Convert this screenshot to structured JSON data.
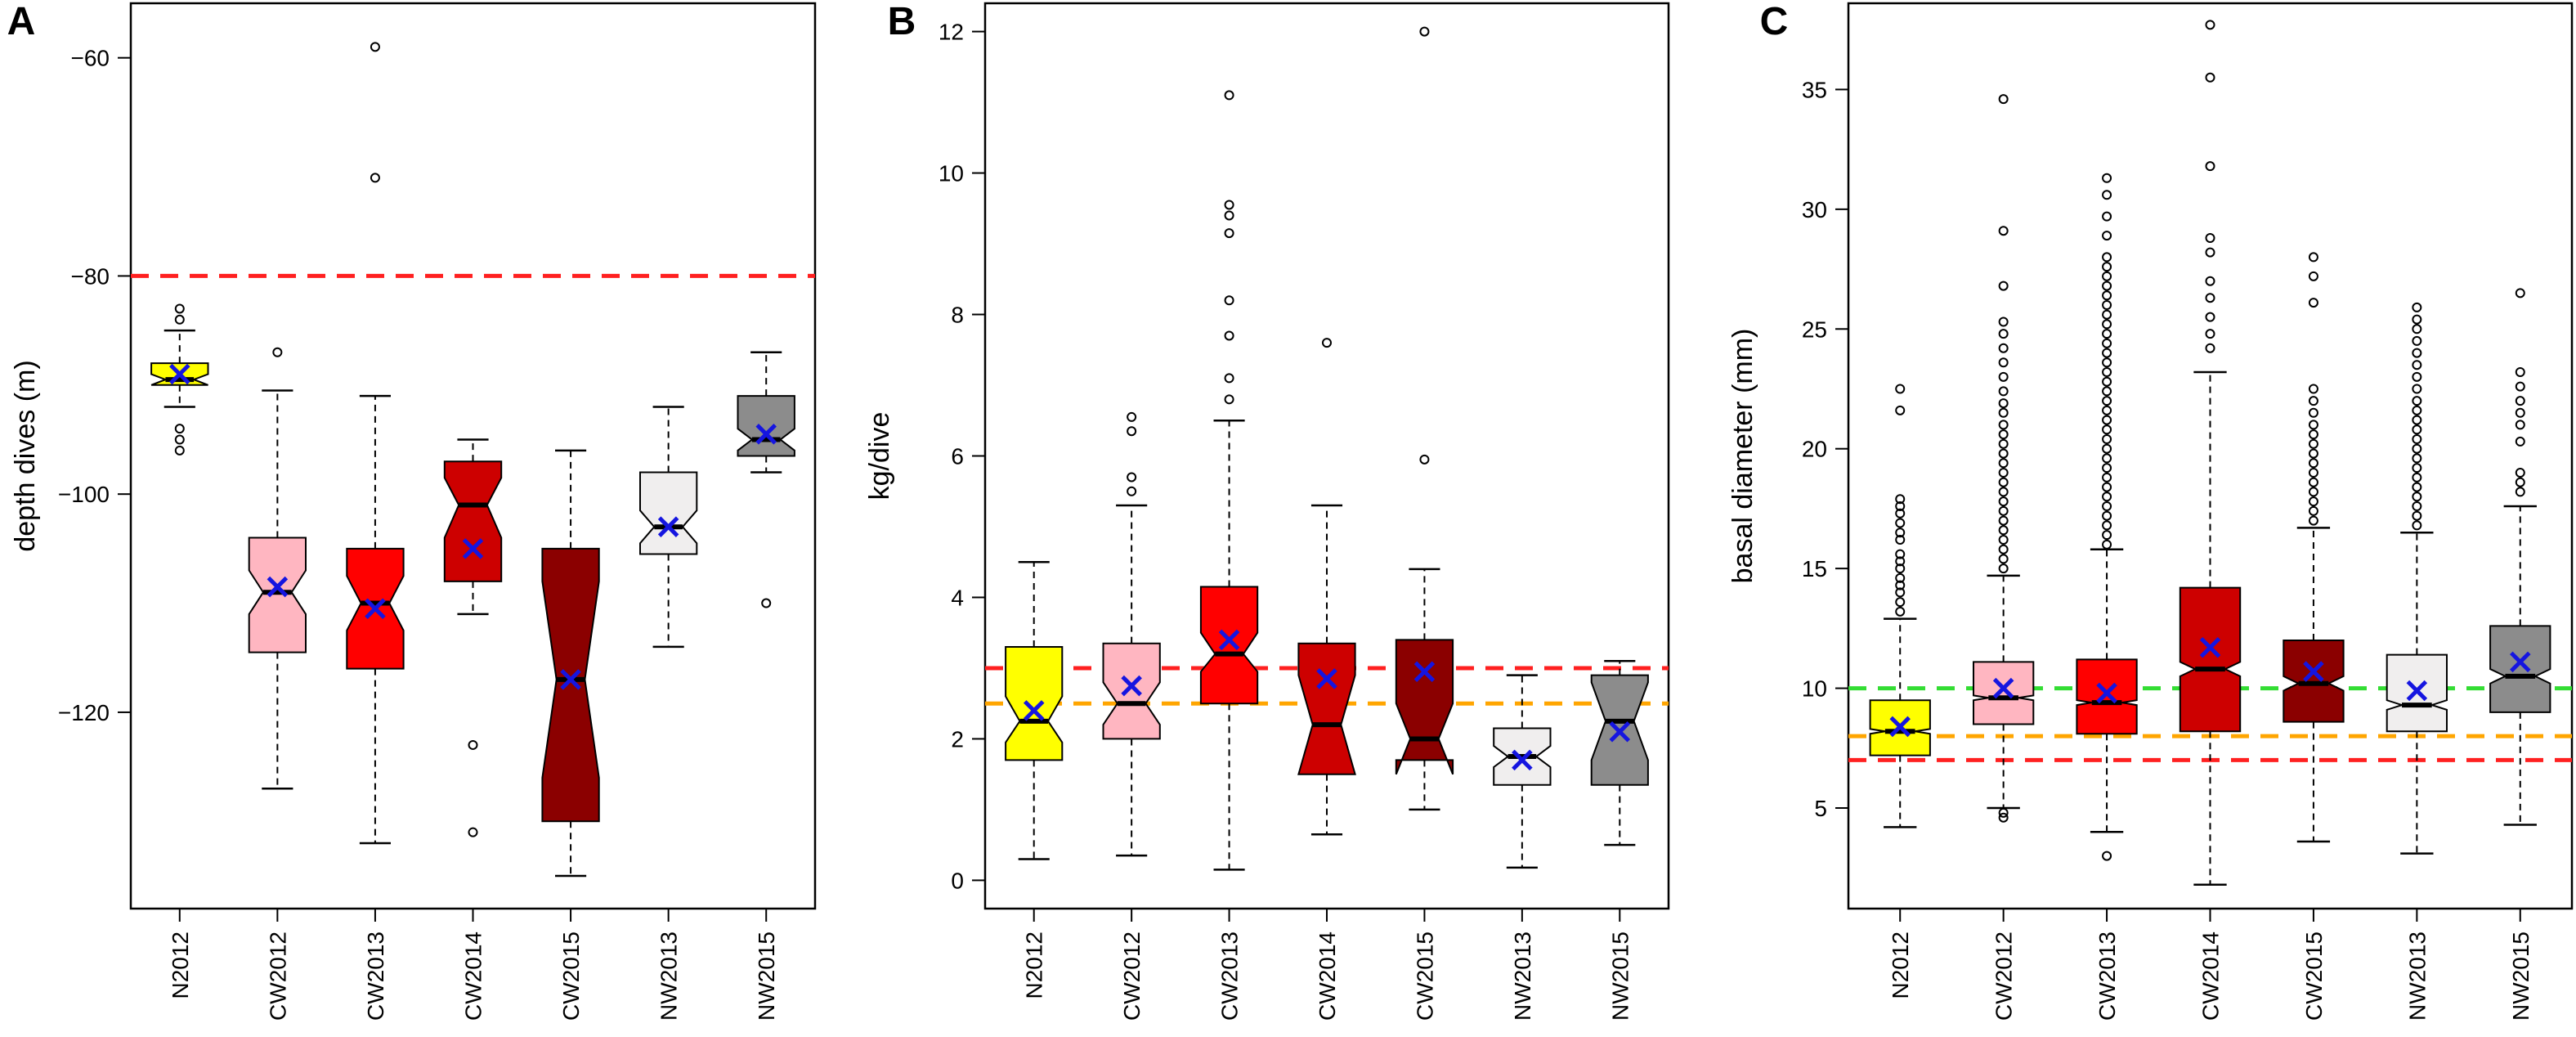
{
  "chart_data": [
    {
      "panel": "A",
      "type": "boxplot",
      "ylabel": "depth dives (m)",
      "ylim": [
        -138,
        -55
      ],
      "yticks": [
        -60,
        -80,
        -100,
        -120
      ],
      "categories": [
        "N2012",
        "CW2012",
        "CW2013",
        "CW2014",
        "CW2015",
        "NW2013",
        "NW2015"
      ],
      "colors": [
        "#ffff00",
        "#ffb6c1",
        "#ff0000",
        "#cd0000",
        "#8b0000",
        "#f0eeee",
        "#8c8c8c"
      ],
      "reference_lines": [
        {
          "value": -80,
          "color": "#ff2020"
        }
      ],
      "boxes": [
        {
          "whisker_low": -92,
          "q1": -90,
          "median": -89.5,
          "q3": -88,
          "whisker_high": -85,
          "notch": [
            -90,
            -89
          ],
          "mean": -89,
          "outliers": [
            -83,
            -84,
            -94,
            -95,
            -96
          ]
        },
        {
          "whisker_low": -127,
          "q1": -114.5,
          "median": -109,
          "q3": -104,
          "whisker_high": -90.5,
          "notch": [
            -111,
            -107
          ],
          "mean": -108.5,
          "outliers": [
            -87
          ]
        },
        {
          "whisker_low": -132,
          "q1": -116,
          "median": -110,
          "q3": -105,
          "whisker_high": -91,
          "notch": [
            -112.5,
            -107.5
          ],
          "mean": -110.5,
          "outliers": [
            -59,
            -71
          ]
        },
        {
          "whisker_low": -111,
          "q1": -108,
          "median": -101,
          "q3": -97,
          "whisker_high": -95,
          "notch": [
            -104,
            -98.5
          ],
          "mean": -105,
          "outliers": [
            -123,
            -131
          ]
        },
        {
          "whisker_low": -135,
          "q1": -130,
          "median": -117,
          "q3": -105,
          "whisker_high": -96,
          "notch": [
            -126,
            -108
          ],
          "mean": -117,
          "outliers": []
        },
        {
          "whisker_low": -114,
          "q1": -105.5,
          "median": -103,
          "q3": -98,
          "whisker_high": -92,
          "notch": [
            -104.5,
            -101.5
          ],
          "mean": -103,
          "outliers": []
        },
        {
          "whisker_low": -98,
          "q1": -96.5,
          "median": -95,
          "q3": -91,
          "whisker_high": -87,
          "notch": [
            -96,
            -94
          ],
          "mean": -94.5,
          "outliers": [
            -110
          ]
        }
      ]
    },
    {
      "panel": "B",
      "type": "boxplot",
      "ylabel": "kg/dive",
      "ylim": [
        -0.4,
        12.4
      ],
      "yticks": [
        0,
        2,
        4,
        6,
        8,
        10,
        12
      ],
      "categories": [
        "N2012",
        "CW2012",
        "CW2013",
        "CW2014",
        "CW2015",
        "NW2013",
        "NW2015"
      ],
      "colors": [
        "#ffff00",
        "#ffb6c1",
        "#ff0000",
        "#cd0000",
        "#8b0000",
        "#f0eeee",
        "#8c8c8c"
      ],
      "reference_lines": [
        {
          "value": 3.0,
          "color": "#ff2020"
        },
        {
          "value": 2.5,
          "color": "#ffa500"
        }
      ],
      "boxes": [
        {
          "whisker_low": 0.3,
          "q1": 1.7,
          "median": 2.25,
          "q3": 3.3,
          "whisker_high": 4.5,
          "notch": [
            1.95,
            2.6
          ],
          "mean": 2.4,
          "outliers": []
        },
        {
          "whisker_low": 0.35,
          "q1": 2.0,
          "median": 2.5,
          "q3": 3.35,
          "whisker_high": 5.3,
          "notch": [
            2.2,
            2.8
          ],
          "mean": 2.75,
          "outliers": [
            5.5,
            5.7,
            6.35,
            6.55
          ]
        },
        {
          "whisker_low": 0.15,
          "q1": 2.5,
          "median": 3.2,
          "q3": 4.15,
          "whisker_high": 6.5,
          "notch": [
            2.95,
            3.5
          ],
          "mean": 3.4,
          "outliers": [
            6.8,
            7.1,
            7.7,
            8.2,
            9.15,
            9.4,
            9.55,
            11.1
          ]
        },
        {
          "whisker_low": 0.65,
          "q1": 1.5,
          "median": 2.2,
          "q3": 3.35,
          "whisker_high": 5.3,
          "notch": [
            1.5,
            2.9
          ],
          "mean": 2.85,
          "outliers": [
            7.6
          ]
        },
        {
          "whisker_low": 1.0,
          "q1": 1.7,
          "median": 2.0,
          "q3": 3.4,
          "whisker_high": 4.4,
          "notch": [
            1.5,
            2.5
          ],
          "mean": 2.95,
          "outliers": [
            5.95,
            12.0
          ]
        },
        {
          "whisker_low": 0.18,
          "q1": 1.35,
          "median": 1.75,
          "q3": 2.15,
          "whisker_high": 2.9,
          "notch": [
            1.6,
            1.9
          ],
          "mean": 1.7,
          "outliers": []
        },
        {
          "whisker_low": 0.5,
          "q1": 1.35,
          "median": 2.25,
          "q3": 2.9,
          "whisker_high": 3.1,
          "notch": [
            1.7,
            2.8
          ],
          "mean": 2.1,
          "outliers": []
        }
      ]
    },
    {
      "panel": "C",
      "type": "boxplot",
      "ylabel": "basal diameter (mm)",
      "ylim": [
        0.8,
        38.6
      ],
      "yticks": [
        5,
        10,
        15,
        20,
        25,
        30,
        35
      ],
      "categories": [
        "N2012",
        "CW2012",
        "CW2013",
        "CW2014",
        "CW2015",
        "NW2013",
        "NW2015"
      ],
      "colors": [
        "#ffff00",
        "#ffb6c1",
        "#ff0000",
        "#cd0000",
        "#8b0000",
        "#f0eeee",
        "#8c8c8c"
      ],
      "reference_lines": [
        {
          "value": 10,
          "color": "#33dd33"
        },
        {
          "value": 8,
          "color": "#ffa500"
        },
        {
          "value": 7,
          "color": "#ff2020"
        }
      ],
      "boxes": [
        {
          "whisker_low": 4.2,
          "q1": 7.2,
          "median": 8.2,
          "q3": 9.5,
          "whisker_high": 12.9,
          "notch": [
            8.1,
            8.3
          ],
          "mean": 8.4,
          "outliers": [
            13.2,
            13.6,
            14.0,
            14.3,
            14.6,
            15.0,
            15.3,
            15.6,
            16.2,
            16.5,
            16.9,
            17.3,
            17.6,
            17.9,
            21.6,
            22.5
          ]
        },
        {
          "whisker_low": 5.0,
          "q1": 8.5,
          "median": 9.6,
          "q3": 11.1,
          "whisker_high": 14.7,
          "notch": [
            9.5,
            9.7
          ],
          "mean": 10.0,
          "outliers": [
            4.6,
            4.8,
            15.0,
            15.4,
            15.8,
            16.2,
            16.6,
            17.0,
            17.4,
            17.8,
            18.2,
            18.6,
            19.0,
            19.4,
            19.8,
            20.2,
            20.6,
            21.0,
            21.5,
            21.9,
            22.4,
            23.0,
            23.6,
            24.2,
            24.8,
            25.3,
            26.8,
            29.1,
            34.6
          ]
        },
        {
          "whisker_low": 4.0,
          "q1": 8.1,
          "median": 9.4,
          "q3": 11.2,
          "whisker_high": 15.8,
          "notch": [
            9.3,
            9.5
          ],
          "mean": 9.8,
          "outliers": [
            3.0,
            16.0,
            16.4,
            16.8,
            17.2,
            17.6,
            18.0,
            18.4,
            18.8,
            19.2,
            19.6,
            20.0,
            20.4,
            20.8,
            21.2,
            21.6,
            22.0,
            22.4,
            22.8,
            23.2,
            23.6,
            24.0,
            24.4,
            24.8,
            25.2,
            25.6,
            26.0,
            26.4,
            26.8,
            27.2,
            27.6,
            28.0,
            28.9,
            29.7,
            30.6,
            31.3
          ]
        },
        {
          "whisker_low": 1.8,
          "q1": 8.2,
          "median": 10.8,
          "q3": 14.2,
          "whisker_high": 23.2,
          "notch": [
            10.5,
            11.1
          ],
          "mean": 11.7,
          "outliers": [
            24.2,
            24.8,
            25.5,
            26.3,
            27.0,
            28.2,
            28.8,
            31.8,
            35.5,
            37.7
          ]
        },
        {
          "whisker_low": 3.6,
          "q1": 8.6,
          "median": 10.2,
          "q3": 12.0,
          "whisker_high": 16.7,
          "notch": [
            9.9,
            10.5
          ],
          "mean": 10.7,
          "outliers": [
            17.0,
            17.4,
            17.8,
            18.2,
            18.6,
            19.0,
            19.4,
            19.8,
            20.2,
            20.6,
            21.0,
            21.5,
            22.0,
            22.5,
            26.1,
            27.2,
            28.0
          ]
        },
        {
          "whisker_low": 3.1,
          "q1": 8.2,
          "median": 9.3,
          "q3": 11.4,
          "whisker_high": 16.5,
          "notch": [
            9.1,
            9.5
          ],
          "mean": 9.9,
          "outliers": [
            16.8,
            17.2,
            17.6,
            18.0,
            18.4,
            18.8,
            19.2,
            19.6,
            20.0,
            20.4,
            20.8,
            21.2,
            21.6,
            22.0,
            22.5,
            23.0,
            23.5,
            24.0,
            24.5,
            25.0,
            25.4,
            25.9
          ]
        },
        {
          "whisker_low": 4.3,
          "q1": 9.0,
          "median": 10.5,
          "q3": 12.6,
          "whisker_high": 17.6,
          "notch": [
            10.2,
            10.8
          ],
          "mean": 11.1,
          "outliers": [
            18.2,
            18.6,
            19.0,
            20.3,
            21.0,
            21.5,
            22.0,
            22.6,
            23.2,
            26.5
          ]
        }
      ]
    }
  ]
}
